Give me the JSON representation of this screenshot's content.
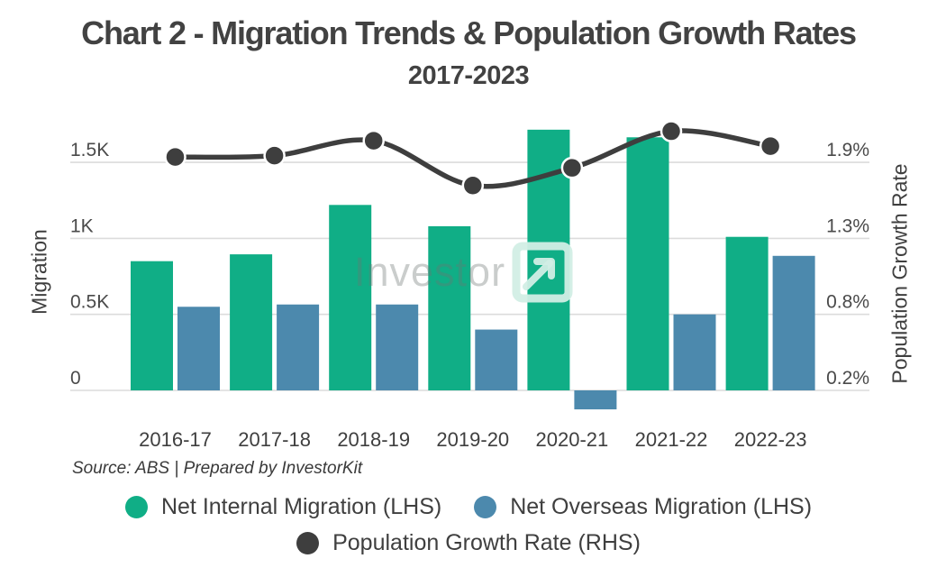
{
  "title": "Chart 2 - Migration Trends & Population Growth Rates",
  "subtitle": "2017-2023",
  "source_note": "Source: ABS | Prepared by InvestorKit",
  "watermark": {
    "text": "Investor",
    "logo": "investorkit-arrow-logo"
  },
  "colors": {
    "internal_bar": "#10AE86",
    "overseas_bar": "#4C89AD",
    "growth_line": "#3E3E3E",
    "grid": "#DCDCDC",
    "watermark_logo": "rgba(210,238,229,0.95)"
  },
  "legend": [
    {
      "label": "Net Internal Migration (LHS)",
      "color": "#10AE86"
    },
    {
      "label": "Net Overseas Migration (LHS)",
      "color": "#4C89AD"
    },
    {
      "label": "Population Growth Rate (RHS)",
      "color": "#3E3E3E"
    }
  ],
  "chart_data": {
    "type": "bar+line combo",
    "title": "Chart 2 - Migration Trends & Population Growth Rates",
    "subtitle": "2017-2023",
    "categories": [
      "2016-17",
      "2017-18",
      "2018-19",
      "2019-20",
      "2020-21",
      "2021-22",
      "2022-23"
    ],
    "series": [
      {
        "name": "Net Internal Migration (LHS)",
        "type": "bar",
        "axis": "left",
        "values": [
          850,
          895,
          1220,
          1080,
          1715,
          1665,
          1010
        ]
      },
      {
        "name": "Net Overseas Migration (LHS)",
        "type": "bar",
        "axis": "left",
        "values": [
          550,
          565,
          565,
          400,
          -125,
          500,
          885
        ]
      },
      {
        "name": "Population Growth Rate (RHS)",
        "type": "line",
        "axis": "right",
        "values": [
          1.92,
          1.93,
          2.04,
          1.71,
          1.84,
          2.11,
          2.0
        ]
      }
    ],
    "left_axis": {
      "label": "Migration",
      "ticks": [
        0,
        500,
        1000,
        1500
      ],
      "tick_labels": [
        "0",
        "0.5K",
        "1K",
        "1.5K"
      ],
      "range": [
        -150,
        1800
      ]
    },
    "right_axis": {
      "label": "Population Growth Rate",
      "ticks": [
        0.2,
        0.76,
        1.32,
        1.88
      ],
      "tick_labels": [
        "0.2%",
        "0.8%",
        "1.3%",
        "1.9%"
      ],
      "unit": "%"
    },
    "grid": "horizontal",
    "legend_position": "bottom"
  }
}
